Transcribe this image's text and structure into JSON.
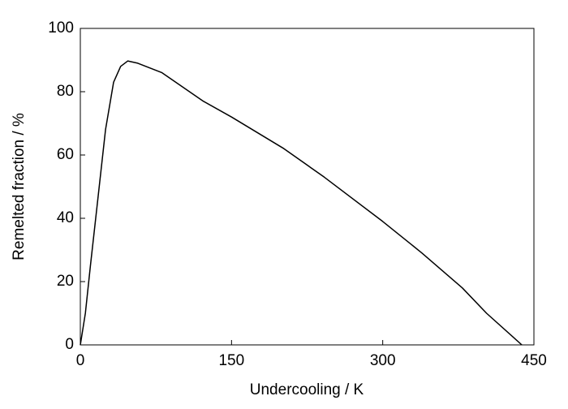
{
  "chart_data": {
    "type": "line",
    "xlabel": "Undercooling / K",
    "ylabel": "Remelted fraction / %",
    "x": [
      0,
      5,
      10,
      17,
      25,
      33,
      40,
      47,
      57,
      81,
      122,
      150,
      202,
      242,
      300,
      339,
      379,
      403,
      438
    ],
    "values": [
      0,
      10,
      25,
      45,
      68,
      83,
      88,
      89.7,
      89,
      86,
      77,
      72,
      62,
      53,
      39,
      29,
      18,
      10,
      0
    ],
    "color": "#000000",
    "xlim": [
      0,
      450
    ],
    "xticks": [
      0,
      150,
      300,
      450
    ],
    "ylim": [
      0,
      100
    ],
    "yticks": [
      0,
      20,
      40,
      60,
      80,
      100
    ]
  }
}
